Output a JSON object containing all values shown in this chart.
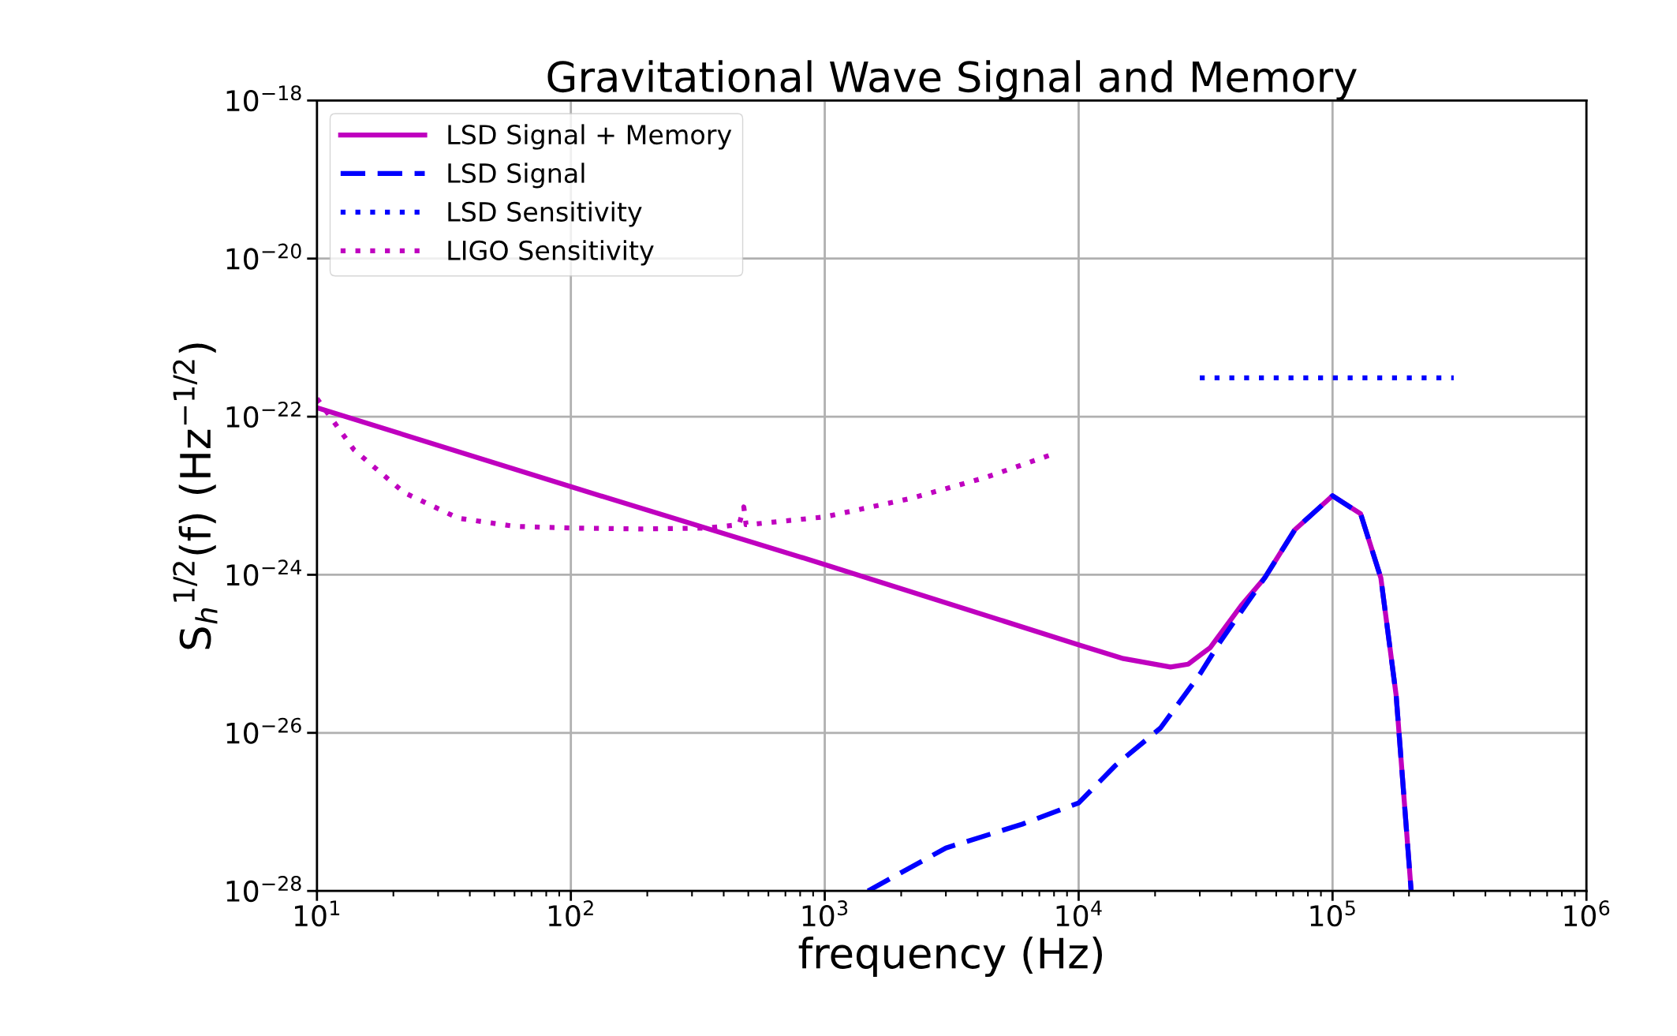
{
  "chart_data": {
    "type": "line",
    "title": "Gravitational Wave Signal and Memory",
    "xlabel": "frequency (Hz)",
    "ylabel": "S$_{h}$$^{1/2}$(f) (Hz$^{−1/2}$)",
    "log": "xy",
    "grid": true,
    "legend": "top left",
    "xlim": [
      10,
      1000000
    ],
    "ylim": [
      1e-28,
      1e-18
    ],
    "xticks": [
      {
        "value": 10,
        "label": "10$^{1}$"
      },
      {
        "value": 100,
        "label": "10$^{2}$"
      },
      {
        "value": 1000,
        "label": "10$^{3}$"
      },
      {
        "value": 10000,
        "label": "10$^{4}$"
      },
      {
        "value": 100000,
        "label": "10$^{5}$"
      },
      {
        "value": 1000000,
        "label": "10$^{6}$"
      }
    ],
    "yticks": [
      {
        "value": 1e-28,
        "label": "10$^{−28}$"
      },
      {
        "value": 1e-26,
        "label": "10$^{−26}$"
      },
      {
        "value": 1e-24,
        "label": "10$^{−24}$"
      },
      {
        "value": 1e-22,
        "label": "10$^{−22}$"
      },
      {
        "value": 1e-20,
        "label": "10$^{−20}$"
      },
      {
        "value": 1e-18,
        "label": "10$^{−18}$"
      }
    ],
    "series": [
      {
        "name": "LSD Signal + Memory",
        "color": "#bf00bf",
        "line_style": "solid",
        "x": [
          10,
          100,
          1000,
          10000,
          15000,
          23000,
          27000,
          33000,
          44000,
          54000,
          71000,
          100000,
          129000,
          155000,
          178000,
          204000
        ],
        "values": [
          1.3e-22,
          1.3e-23,
          1.35e-24,
          1.3e-25,
          8.7e-26,
          6.8e-26,
          7.4e-26,
          1.2e-25,
          4.2e-25,
          9.1e-25,
          3.7e-24,
          1e-23,
          5.9e-24,
          9.1e-25,
          3e-26,
          1e-28
        ]
      },
      {
        "name": "LSD Signal",
        "color": "#0000ff",
        "line_style": "dashed",
        "x": [
          1480,
          3000,
          6000,
          10000,
          14000,
          21000,
          30000,
          36000,
          54000,
          71000,
          100000,
          129000,
          155000,
          178000,
          204000
        ],
        "values": [
          1e-28,
          3.5e-28,
          7e-28,
          1.3e-27,
          3.9e-27,
          1.15e-26,
          5.5e-26,
          1.4e-25,
          9.1e-25,
          3.7e-24,
          1e-23,
          5.9e-24,
          9.1e-25,
          3e-26,
          1e-28
        ]
      },
      {
        "name": "LSD Sensitivity",
        "color": "#0000ff",
        "line_style": "dotted",
        "x": [
          30000,
          300000
        ],
        "values": [
          3.1e-22,
          3.1e-22
        ]
      },
      {
        "name": "LIGO Sensitivity",
        "color": "#bf00bf",
        "line_style": "dotted",
        "x": [
          10,
          14,
          22,
          36,
          60,
          100,
          190,
          340,
          460,
          480,
          490,
          500,
          1000,
          2200,
          4300,
          8000
        ],
        "values": [
          1.7e-22,
          3.8e-23,
          1.1e-23,
          5.2e-24,
          4.1e-24,
          3.9e-24,
          3.8e-24,
          3.9e-24,
          4.3e-24,
          7.2e-24,
          4.3e-24,
          4.3e-24,
          5.4e-24,
          9.3e-24,
          1.7e-23,
          3.4e-23
        ]
      }
    ]
  }
}
